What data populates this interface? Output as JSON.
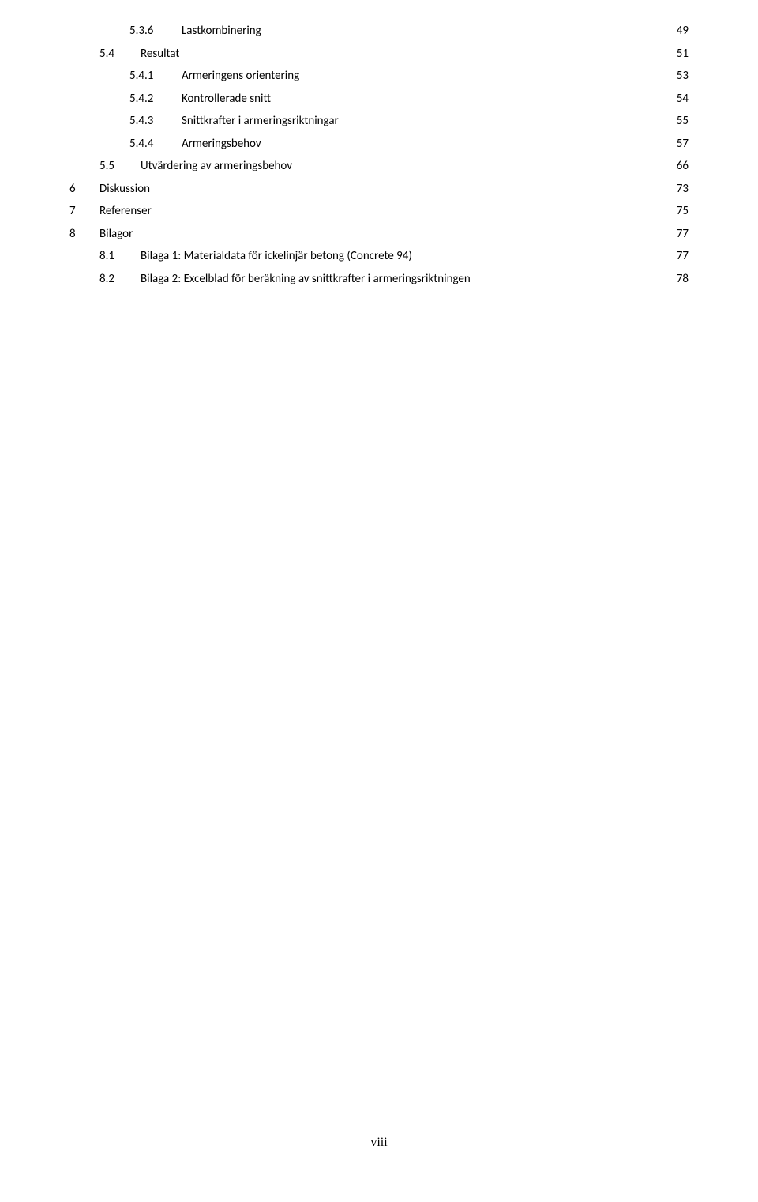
{
  "toc": [
    {
      "level": 3,
      "num": "5.3.6",
      "title": "Lastkombinering",
      "page": "49"
    },
    {
      "level": 2,
      "num": "5.4",
      "title": "Resultat",
      "page": "51"
    },
    {
      "level": 3,
      "num": "5.4.1",
      "title": "Armeringens orientering",
      "page": "53"
    },
    {
      "level": 3,
      "num": "5.4.2",
      "title": "Kontrollerade snitt",
      "page": "54"
    },
    {
      "level": 3,
      "num": "5.4.3",
      "title": "Snittkrafter i armeringsriktningar",
      "page": "55"
    },
    {
      "level": 3,
      "num": "5.4.4",
      "title": "Armeringsbehov",
      "page": "57"
    },
    {
      "level": 2,
      "num": "5.5",
      "title": "Utvärdering av armeringsbehov",
      "page": "66"
    },
    {
      "level": 1,
      "num": "6",
      "title": "Diskussion",
      "page": "73"
    },
    {
      "level": 1,
      "num": "7",
      "title": "Referenser",
      "page": "75"
    },
    {
      "level": 1,
      "num": "8",
      "title": "Bilagor",
      "page": "77"
    },
    {
      "level": 2,
      "num": "8.1",
      "title": "Bilaga 1: Materialdata för ickelinjär betong (Concrete 94)",
      "page": "77"
    },
    {
      "level": 2,
      "num": "8.2",
      "title": "Bilaga 2: Excelblad för beräkning av snittkrafter i armeringsriktningen",
      "page": "78"
    }
  ],
  "footer": "viii"
}
